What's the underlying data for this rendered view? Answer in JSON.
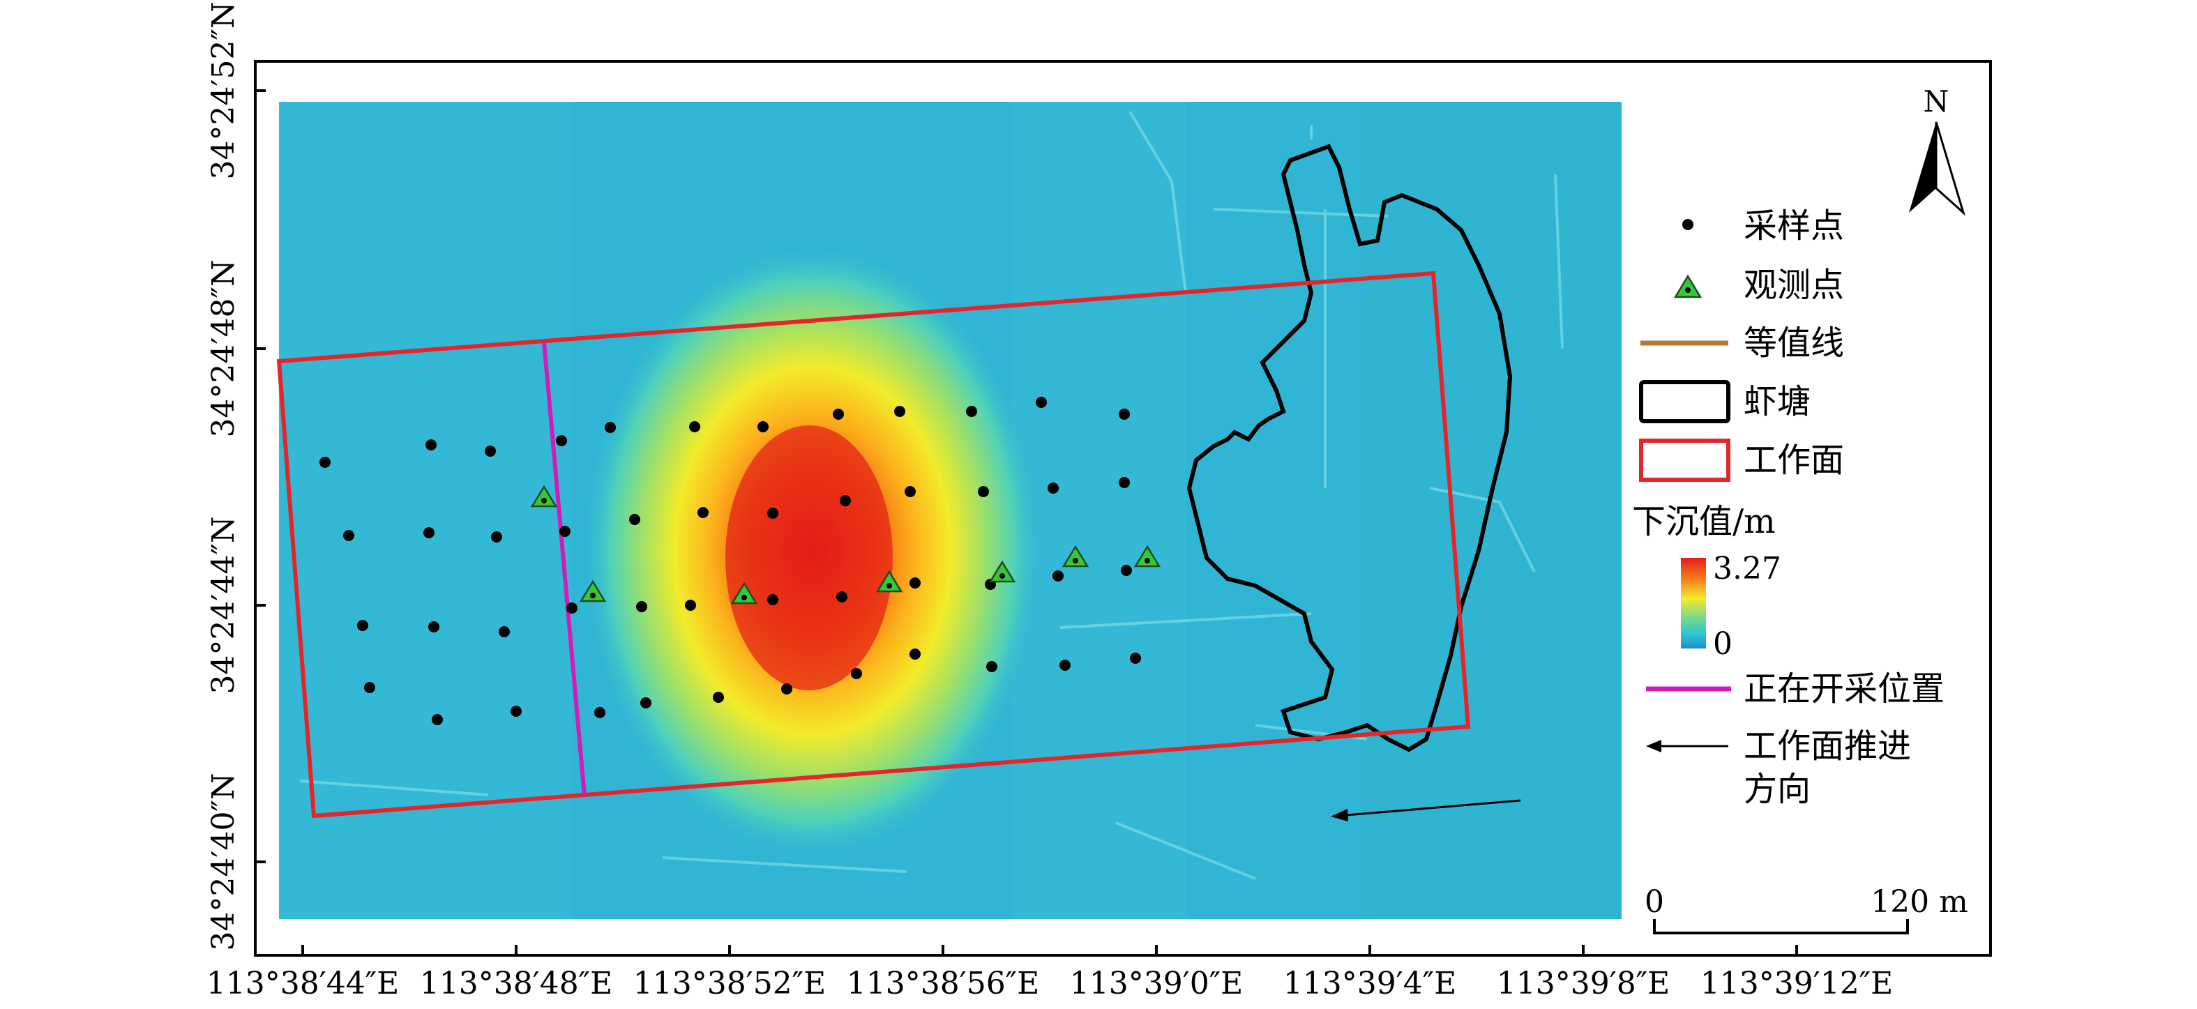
{
  "map": {
    "north_label": "N",
    "x_ticks": [
      "113°38′44″E",
      "113°38′48″E",
      "113°38′52″E",
      "113°38′56″E",
      "113°39′0″E",
      "113°39′4″E",
      "113°39′8″E",
      "113°39′12″E"
    ],
    "y_ticks": [
      "34°24′52″N",
      "34°24′48″N",
      "34°24′44″N",
      "34°24′40″N"
    ],
    "colors": {
      "background_low": "#2fb7d6",
      "subsidence_high": "#e4201a",
      "contour": "#b5763a",
      "shrimp_pond": "#000000",
      "working_face": "#e3262c",
      "mining_position": "#d21bb8",
      "sample_point": "#000000",
      "observation_point": "#37c837"
    }
  },
  "legend": {
    "sample_point": "采样点",
    "observation_point": "观测点",
    "contour": "等值线",
    "shrimp_pond": "虾塘",
    "working_face": "工作面",
    "subsidence_title": "下沉值/m",
    "subsidence_max": "3.27",
    "subsidence_min": "0",
    "mining_position": "正在开采位置",
    "advance_direction_line1": "工作面推进",
    "advance_direction_line2": "方向"
  },
  "scale_bar": {
    "start": "0",
    "end": "120 m"
  }
}
